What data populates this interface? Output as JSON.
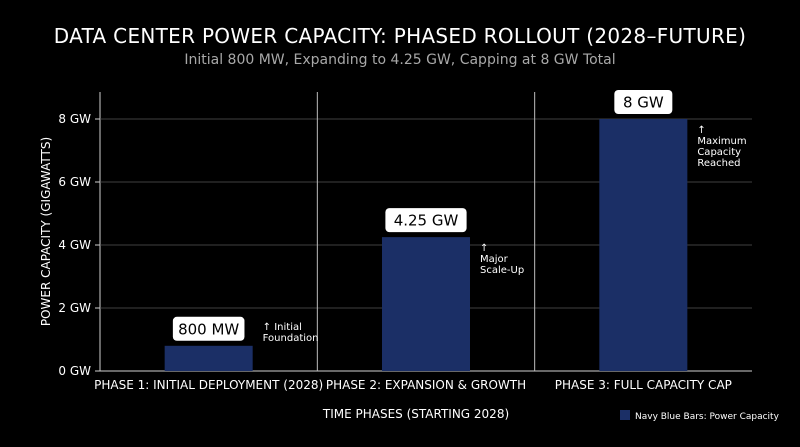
{
  "chart_data": {
    "type": "bar",
    "title": "DATA CENTER POWER CAPACITY: PHASED ROLLOUT (2028–FUTURE)",
    "subtitle": "Initial 800 MW, Expanding to 4.25 GW, Capping at 8 GW Total",
    "categories": [
      "PHASE 1: INITIAL DEPLOYMENT (2028)",
      "PHASE 2: EXPANSION & GROWTH",
      "PHASE 3: FULL CAPACITY CAP"
    ],
    "values": [
      0.8,
      4.25,
      8
    ],
    "data_labels": [
      "800 MW",
      "4.25 GW",
      "8 GW"
    ],
    "annotations": [
      [
        "↑ Initial",
        "Foundation"
      ],
      [
        "↑",
        "Major",
        "Scale-Up"
      ],
      [
        "↑",
        "Maximum",
        "Capacity",
        "Reached"
      ]
    ],
    "ylabel": "POWER CAPACITY (GIGAWATTS)",
    "xlabel": "TIME PHASES (STARTING 2028)",
    "ylim": [
      0,
      8
    ],
    "yticks": [
      0,
      2,
      4,
      6,
      8
    ],
    "ytick_labels": [
      "0 GW",
      "2 GW",
      "4 GW",
      "6 GW",
      "8 GW"
    ],
    "grid": true,
    "legend": {
      "label": "Navy Blue Bars: Power Capacity",
      "placement": "bottom-right"
    },
    "colors": {
      "bar": "#1b2f66",
      "background": "#000000",
      "grid": "#555555",
      "axis": "#cfcfcf"
    }
  }
}
